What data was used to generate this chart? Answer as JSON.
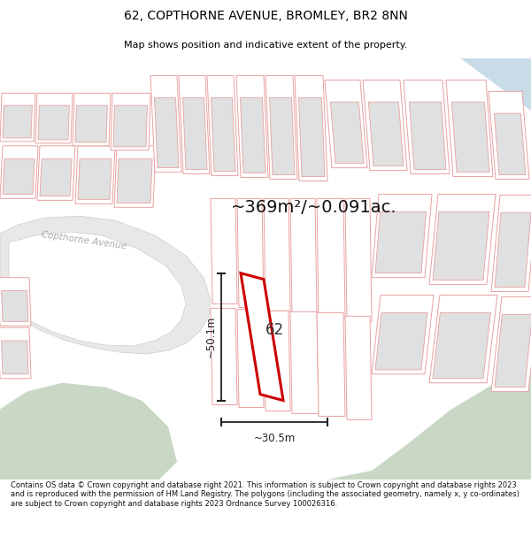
{
  "title": "62, COPTHORNE AVENUE, BROMLEY, BR2 8NN",
  "subtitle": "Map shows position and indicative extent of the property.",
  "area_text": "~369m²/~0.091ac.",
  "width_label": "~30.5m",
  "height_label": "~50.1m",
  "road_label": "Copthorne Avenue",
  "plot_number": "62",
  "footer_text": "Contains OS data © Crown copyright and database right 2021. This information is subject to Crown copyright and database rights 2023 and is reproduced with the permission of HM Land Registry. The polygons (including the associated geometry, namely x, y co-ordinates) are subject to Crown copyright and database rights 2023 Ordnance Survey 100026316.",
  "bg_color": "#ffffff",
  "map_bg": "#ffffff",
  "plot_fill": "#ffffff",
  "plot_stroke": "#cc0000",
  "parcel_stroke": "#e8a0a0",
  "parcel_fill": "#ffffff",
  "building_fill": "#e0e0e0",
  "building_stroke": "#e8a0a0",
  "road_fill": "#e8e8e8",
  "road_stroke": "#cccccc",
  "green_fill": "#c8d8c4",
  "light_blue": "#c8dce8",
  "dim_line_color": "#222222",
  "road_label_color": "#aaaaaa",
  "plot_label_color": "#333333",
  "area_text_color": "#111111"
}
